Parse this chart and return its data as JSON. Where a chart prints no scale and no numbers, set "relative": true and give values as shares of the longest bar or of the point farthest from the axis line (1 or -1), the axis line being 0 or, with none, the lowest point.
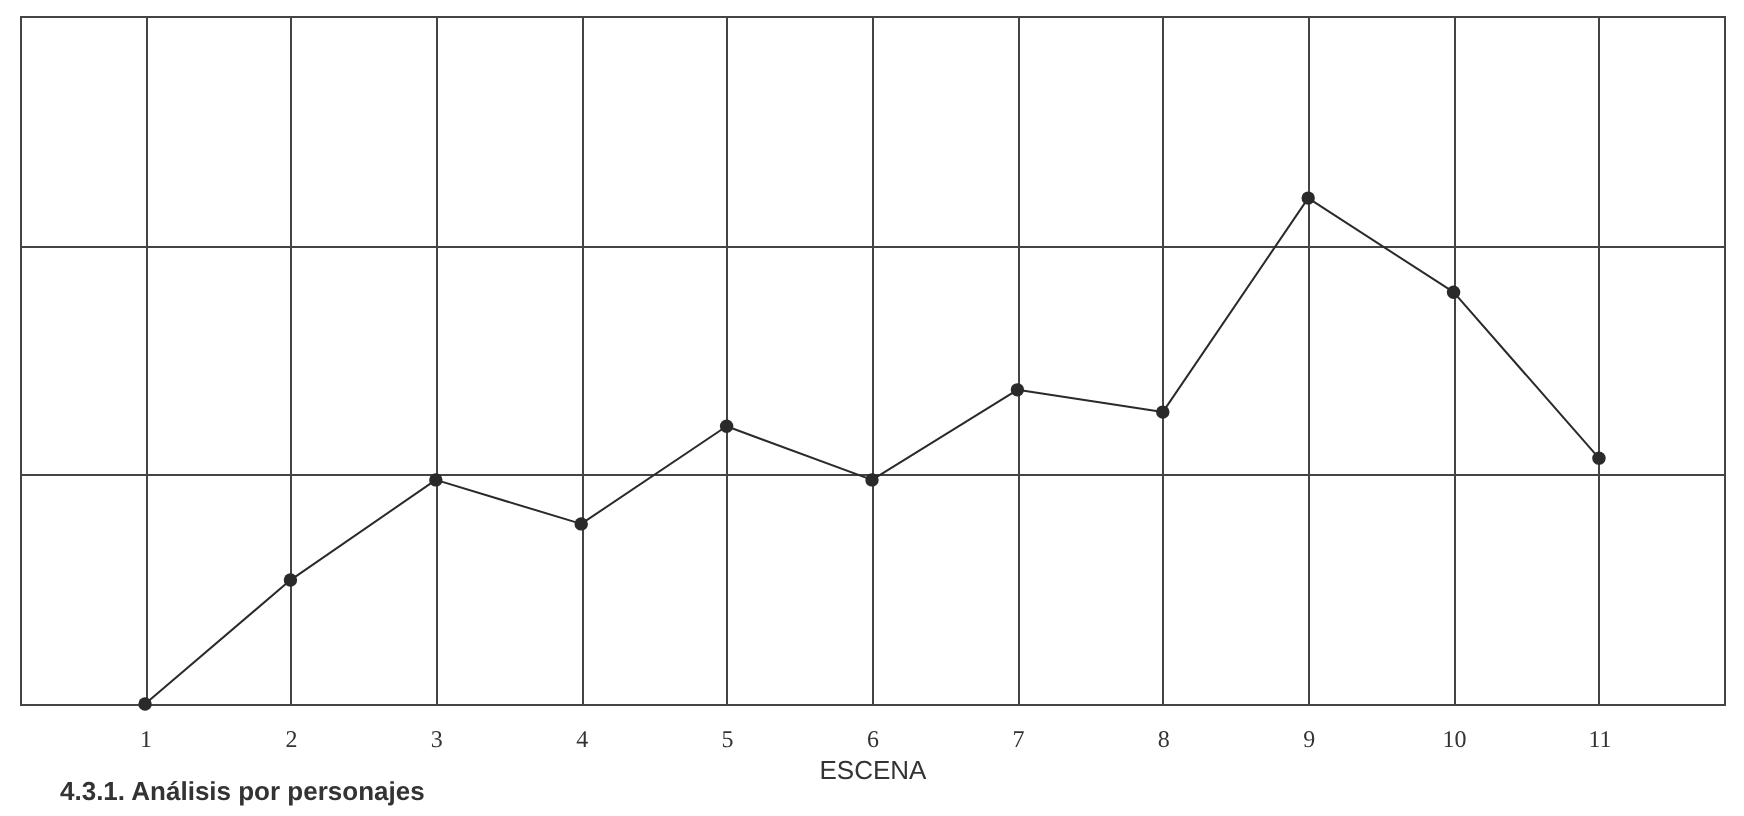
{
  "chart_data": {
    "type": "line",
    "xlabel": "ESCENA",
    "categories": [
      "1",
      "2",
      "3",
      "4",
      "5",
      "6",
      "7",
      "8",
      "9",
      "10",
      "11"
    ],
    "values": [
      0,
      0.245,
      0.443,
      0.356,
      0.549,
      0.443,
      0.621,
      0.577,
      1,
      0.814,
      0.486
    ],
    "color": "#2a2a2a",
    "relative": true,
    "grid": true,
    "marker": "circle",
    "line_style": "solid",
    "annotations": [
      "4.3.1. Análisis por personajes"
    ]
  }
}
